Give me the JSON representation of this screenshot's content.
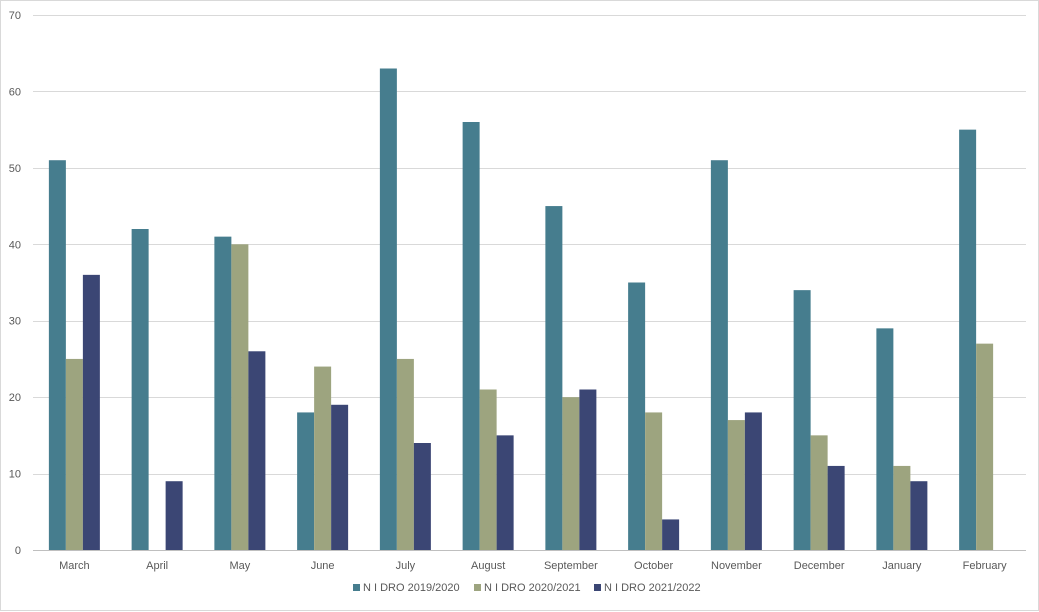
{
  "chart_data": {
    "type": "bar",
    "title": "",
    "xlabel": "",
    "ylabel": "",
    "ylim": [
      0,
      70
    ],
    "yticks": [
      0,
      10,
      20,
      30,
      40,
      50,
      60,
      70
    ],
    "grid": true,
    "legend_position": "bottom",
    "categories": [
      "March",
      "April",
      "May",
      "June",
      "July",
      "August",
      "September",
      "October",
      "November",
      "December",
      "January",
      "February"
    ],
    "series": [
      {
        "name": "NIDRO 2019/2020",
        "label": "N I DRO 2019/2020",
        "color": "#467d8e",
        "values": [
          51,
          42,
          41,
          18,
          63,
          56,
          45,
          35,
          51,
          34,
          29,
          55
        ]
      },
      {
        "name": "NIDRO 2020/2021",
        "label": "N I DRO 2020/2021",
        "color": "#9da47f",
        "values": [
          25,
          null,
          40,
          24,
          25,
          21,
          20,
          18,
          17,
          15,
          11,
          27
        ]
      },
      {
        "name": "NIDRO 2021/2022",
        "label": "N I DRO 2021/2022",
        "color": "#3b4674",
        "values": [
          36,
          9,
          26,
          19,
          14,
          15,
          21,
          4,
          18,
          11,
          9,
          null
        ]
      }
    ]
  }
}
